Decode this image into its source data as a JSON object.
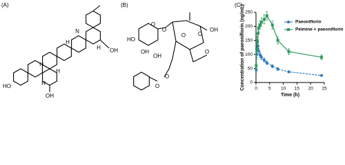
{
  "structure_a": {
    "label": "(A)",
    "atoms": [
      "N",
      "OH",
      "H",
      "H",
      "H",
      "H",
      "H",
      "HO",
      "OH"
    ]
  },
  "structure_b": {
    "label": "(B)",
    "atoms": [
      "O",
      "HO",
      "OH",
      "OH",
      "O",
      "O",
      "OH",
      "O",
      "O",
      "O",
      "O"
    ]
  },
  "chart_data": {
    "type": "line",
    "panel_label": "(C)",
    "x_label": "Time (h)",
    "y_label": "Concentration of paeoniflorin (ng/mL)",
    "x": [
      0.083,
      0.25,
      0.5,
      0.75,
      1,
      1.5,
      2,
      3,
      4,
      6,
      8,
      12,
      24
    ],
    "series": [
      {
        "name": "Paeoniflorin",
        "color": "#2f7ab9",
        "marker": "circle",
        "values": [
          45,
          100,
          145,
          130,
          112,
          98,
          90,
          80,
          70,
          58,
          48,
          38,
          25
        ],
        "errors": [
          8,
          12,
          15,
          12,
          10,
          9,
          8,
          7,
          6,
          5,
          5,
          4,
          3
        ]
      },
      {
        "name": "Peimine + paeoniflorin",
        "color": "#2e9a5c",
        "marker": "square",
        "values": [
          60,
          120,
          150,
          175,
          195,
          205,
          215,
          225,
          238,
          205,
          150,
          110,
          90
        ],
        "errors": [
          10,
          14,
          15,
          15,
          14,
          14,
          15,
          16,
          15,
          14,
          12,
          10,
          8
        ]
      }
    ],
    "xlim": [
      0,
      25
    ],
    "xticks": [
      0,
      5,
      10,
      15,
      20,
      25
    ],
    "ylim": [
      0,
      250
    ],
    "yticks": [
      0,
      50,
      100,
      150,
      200,
      250
    ],
    "legend": "upper right"
  }
}
